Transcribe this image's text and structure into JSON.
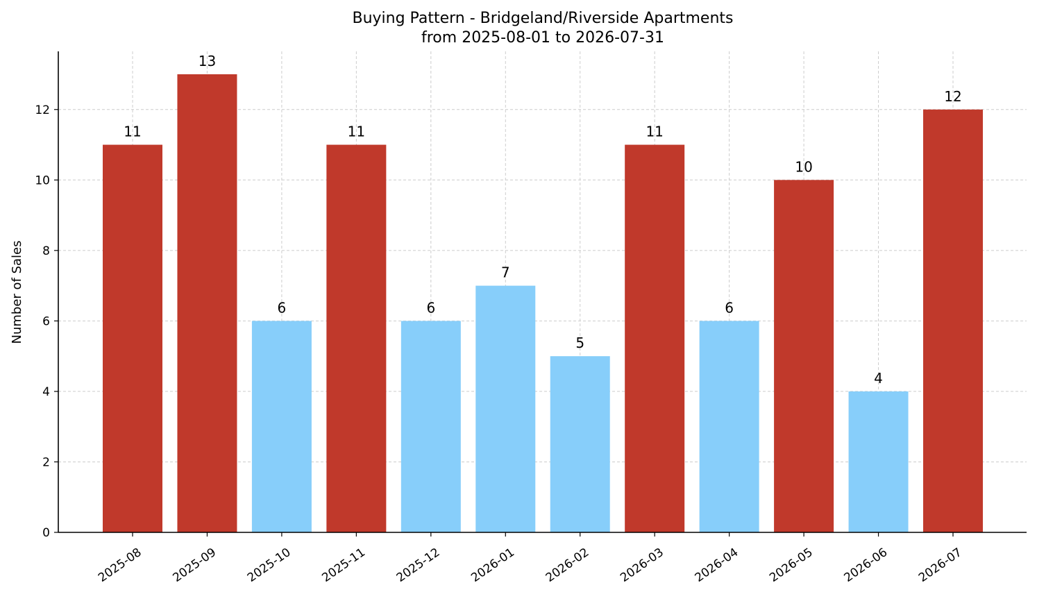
{
  "chart_data": {
    "type": "bar",
    "title": "Buying Pattern - Bridgeland/Riverside Apartments",
    "subtitle": "from 2025-08-01 to 2026-07-31",
    "xlabel": "",
    "ylabel": "Number of Sales",
    "ylim": [
      0,
      13.65
    ],
    "yticks": [
      0,
      2,
      4,
      6,
      8,
      10,
      12
    ],
    "grid": true,
    "categories": [
      "2025-08",
      "2025-09",
      "2025-10",
      "2025-11",
      "2025-12",
      "2026-01",
      "2026-02",
      "2026-03",
      "2026-04",
      "2026-05",
      "2026-06",
      "2026-07"
    ],
    "values": [
      11,
      13,
      6,
      11,
      6,
      7,
      5,
      11,
      6,
      10,
      4,
      12
    ],
    "colors": [
      "#c0392b",
      "#c0392b",
      "#87cefa",
      "#c0392b",
      "#87cefa",
      "#87cefa",
      "#87cefa",
      "#c0392b",
      "#87cefa",
      "#c0392b",
      "#87cefa",
      "#c0392b"
    ]
  }
}
